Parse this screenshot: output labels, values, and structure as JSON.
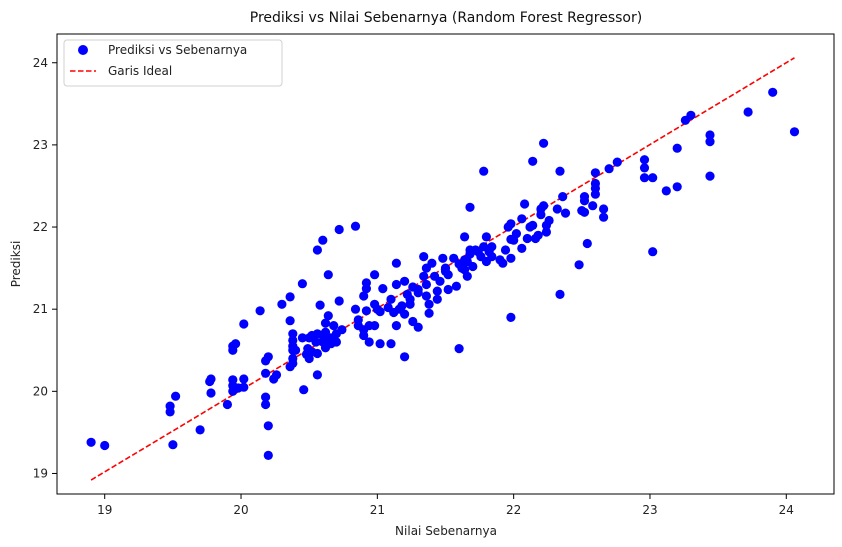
{
  "chart_data": {
    "type": "scatter",
    "title": "Prediksi vs Nilai Sebenarnya (Random Forest Regressor)",
    "xlabel": "Nilai Sebenarnya",
    "ylabel": "Prediksi",
    "xlim": [
      18.65,
      24.35
    ],
    "ylim": [
      18.75,
      24.35
    ],
    "xticks": [
      19,
      20,
      21,
      22,
      23,
      24
    ],
    "yticks": [
      19,
      20,
      21,
      22,
      23,
      24
    ],
    "grid": false,
    "legend_position": "top-left",
    "series": [
      {
        "name": "Prediksi vs Sebenarnya",
        "kind": "points",
        "color": "#0000ff",
        "points": [
          [
            18.9,
            19.38
          ],
          [
            19.0,
            19.34
          ],
          [
            19.5,
            19.35
          ],
          [
            19.48,
            19.82
          ],
          [
            19.48,
            19.75
          ],
          [
            19.52,
            19.94
          ],
          [
            19.7,
            19.53
          ],
          [
            19.77,
            20.12
          ],
          [
            19.78,
            20.15
          ],
          [
            19.78,
            19.98
          ],
          [
            19.9,
            19.84
          ],
          [
            19.94,
            20.5
          ],
          [
            19.94,
            20.55
          ],
          [
            19.96,
            20.58
          ],
          [
            19.94,
            20.14
          ],
          [
            19.94,
            20.07
          ],
          [
            19.94,
            20.0
          ],
          [
            19.98,
            20.04
          ],
          [
            20.02,
            20.15
          ],
          [
            20.02,
            20.05
          ],
          [
            20.02,
            20.82
          ],
          [
            20.14,
            20.98
          ],
          [
            20.18,
            19.93
          ],
          [
            20.18,
            19.84
          ],
          [
            20.2,
            19.58
          ],
          [
            20.2,
            19.22
          ],
          [
            20.18,
            20.22
          ],
          [
            20.18,
            20.37
          ],
          [
            20.2,
            20.42
          ],
          [
            20.24,
            20.15
          ],
          [
            20.26,
            20.2
          ],
          [
            20.3,
            21.06
          ],
          [
            20.36,
            21.15
          ],
          [
            20.36,
            20.86
          ],
          [
            20.38,
            20.7
          ],
          [
            20.38,
            20.62
          ],
          [
            20.38,
            20.55
          ],
          [
            20.38,
            20.5
          ],
          [
            20.38,
            20.4
          ],
          [
            20.36,
            20.3
          ],
          [
            20.38,
            20.34
          ],
          [
            20.4,
            20.5
          ],
          [
            20.45,
            21.31
          ],
          [
            20.45,
            20.65
          ],
          [
            20.46,
            20.02
          ],
          [
            20.48,
            20.45
          ],
          [
            20.49,
            20.52
          ],
          [
            20.5,
            20.4
          ],
          [
            20.52,
            20.48
          ],
          [
            20.5,
            20.65
          ],
          [
            20.52,
            20.68
          ],
          [
            20.55,
            20.6
          ],
          [
            20.56,
            20.7
          ],
          [
            20.56,
            20.46
          ],
          [
            20.58,
            21.05
          ],
          [
            20.56,
            21.72
          ],
          [
            20.6,
            21.84
          ],
          [
            20.6,
            20.68
          ],
          [
            20.6,
            20.6
          ],
          [
            20.62,
            20.72
          ],
          [
            20.62,
            20.53
          ],
          [
            20.62,
            20.83
          ],
          [
            20.64,
            21.42
          ],
          [
            20.64,
            20.92
          ],
          [
            20.66,
            20.65
          ],
          [
            20.66,
            20.58
          ],
          [
            20.68,
            20.8
          ],
          [
            20.7,
            20.7
          ],
          [
            20.7,
            20.6
          ],
          [
            20.72,
            21.97
          ],
          [
            20.72,
            21.1
          ],
          [
            20.74,
            20.75
          ],
          [
            20.56,
            20.2
          ],
          [
            20.62,
            20.62
          ],
          [
            20.84,
            22.01
          ],
          [
            20.84,
            21.0
          ],
          [
            20.86,
            20.87
          ],
          [
            20.86,
            20.8
          ],
          [
            20.9,
            20.75
          ],
          [
            20.9,
            20.68
          ],
          [
            20.9,
            21.16
          ],
          [
            20.92,
            21.25
          ],
          [
            20.92,
            21.32
          ],
          [
            20.94,
            20.8
          ],
          [
            20.94,
            20.6
          ],
          [
            20.92,
            20.98
          ],
          [
            20.98,
            21.42
          ],
          [
            20.98,
            21.06
          ],
          [
            20.98,
            20.8
          ],
          [
            21.0,
            21.0
          ],
          [
            21.02,
            20.97
          ],
          [
            21.02,
            20.58
          ],
          [
            21.04,
            21.25
          ],
          [
            21.08,
            21.02
          ],
          [
            21.1,
            20.58
          ],
          [
            21.1,
            21.12
          ],
          [
            21.12,
            20.96
          ],
          [
            21.14,
            21.3
          ],
          [
            21.14,
            21.56
          ],
          [
            21.14,
            20.8
          ],
          [
            21.16,
            21.0
          ],
          [
            21.18,
            21.04
          ],
          [
            21.2,
            20.94
          ],
          [
            21.2,
            20.42
          ],
          [
            21.2,
            21.34
          ],
          [
            21.22,
            21.18
          ],
          [
            21.24,
            21.06
          ],
          [
            21.24,
            21.12
          ],
          [
            21.26,
            21.27
          ],
          [
            21.26,
            20.85
          ],
          [
            21.3,
            21.24
          ],
          [
            21.3,
            21.2
          ],
          [
            21.3,
            20.78
          ],
          [
            21.34,
            21.64
          ],
          [
            21.34,
            21.4
          ],
          [
            21.36,
            21.5
          ],
          [
            21.36,
            21.3
          ],
          [
            21.36,
            21.16
          ],
          [
            21.38,
            21.06
          ],
          [
            21.38,
            20.95
          ],
          [
            21.4,
            21.56
          ],
          [
            21.42,
            21.4
          ],
          [
            21.44,
            21.22
          ],
          [
            21.44,
            21.12
          ],
          [
            21.46,
            21.34
          ],
          [
            21.48,
            21.62
          ],
          [
            21.5,
            21.5
          ],
          [
            21.5,
            21.46
          ],
          [
            21.52,
            21.42
          ],
          [
            21.52,
            21.24
          ],
          [
            21.56,
            21.62
          ],
          [
            21.58,
            21.28
          ],
          [
            21.6,
            20.52
          ],
          [
            21.6,
            21.55
          ],
          [
            21.62,
            21.5
          ],
          [
            21.64,
            21.88
          ],
          [
            21.64,
            21.6
          ],
          [
            21.64,
            21.48
          ],
          [
            21.66,
            21.58
          ],
          [
            21.66,
            21.4
          ],
          [
            21.68,
            22.24
          ],
          [
            21.68,
            21.72
          ],
          [
            21.68,
            21.67
          ],
          [
            21.7,
            21.52
          ],
          [
            21.72,
            21.72
          ],
          [
            21.74,
            21.7
          ],
          [
            21.76,
            21.64
          ],
          [
            21.78,
            22.68
          ],
          [
            21.78,
            21.76
          ],
          [
            21.8,
            21.58
          ],
          [
            21.8,
            21.88
          ],
          [
            21.82,
            21.7
          ],
          [
            21.84,
            21.76
          ],
          [
            21.84,
            21.64
          ],
          [
            21.9,
            21.6
          ],
          [
            21.92,
            21.56
          ],
          [
            21.94,
            21.72
          ],
          [
            21.96,
            22.0
          ],
          [
            21.98,
            21.85
          ],
          [
            21.98,
            22.04
          ],
          [
            21.98,
            21.62
          ],
          [
            21.98,
            20.9
          ],
          [
            22.0,
            21.84
          ],
          [
            22.02,
            21.92
          ],
          [
            22.06,
            21.74
          ],
          [
            22.06,
            22.1
          ],
          [
            22.08,
            22.28
          ],
          [
            22.1,
            21.86
          ],
          [
            22.12,
            22.0
          ],
          [
            22.14,
            22.8
          ],
          [
            22.14,
            22.02
          ],
          [
            22.16,
            21.86
          ],
          [
            22.18,
            21.9
          ],
          [
            22.2,
            22.15
          ],
          [
            22.2,
            22.22
          ],
          [
            22.22,
            22.26
          ],
          [
            22.22,
            23.02
          ],
          [
            22.24,
            22.02
          ],
          [
            22.24,
            21.94
          ],
          [
            22.26,
            22.08
          ],
          [
            22.32,
            22.22
          ],
          [
            22.34,
            22.68
          ],
          [
            22.34,
            21.18
          ],
          [
            22.36,
            22.37
          ],
          [
            22.38,
            22.17
          ],
          [
            22.48,
            21.54
          ],
          [
            22.5,
            22.2
          ],
          [
            22.52,
            22.37
          ],
          [
            22.52,
            22.32
          ],
          [
            22.52,
            22.18
          ],
          [
            22.54,
            21.8
          ],
          [
            22.58,
            22.26
          ],
          [
            22.6,
            22.47
          ],
          [
            22.6,
            22.53
          ],
          [
            22.6,
            22.66
          ],
          [
            22.6,
            22.4
          ],
          [
            22.66,
            22.12
          ],
          [
            22.66,
            22.22
          ],
          [
            22.7,
            22.71
          ],
          [
            22.76,
            22.79
          ],
          [
            22.96,
            22.6
          ],
          [
            22.96,
            22.72
          ],
          [
            22.96,
            22.82
          ],
          [
            23.02,
            21.7
          ],
          [
            23.02,
            22.6
          ],
          [
            23.12,
            22.44
          ],
          [
            23.2,
            22.49
          ],
          [
            23.2,
            22.96
          ],
          [
            23.26,
            23.3
          ],
          [
            23.3,
            23.36
          ],
          [
            23.44,
            22.62
          ],
          [
            23.44,
            23.04
          ],
          [
            23.44,
            23.12
          ],
          [
            23.72,
            23.4
          ],
          [
            23.9,
            23.64
          ],
          [
            24.06,
            23.16
          ]
        ]
      },
      {
        "name": "Garis Ideal",
        "kind": "dashed-line",
        "color": "#ff0000",
        "points": [
          [
            18.9,
            18.92
          ],
          [
            24.06,
            24.06
          ]
        ]
      }
    ]
  }
}
